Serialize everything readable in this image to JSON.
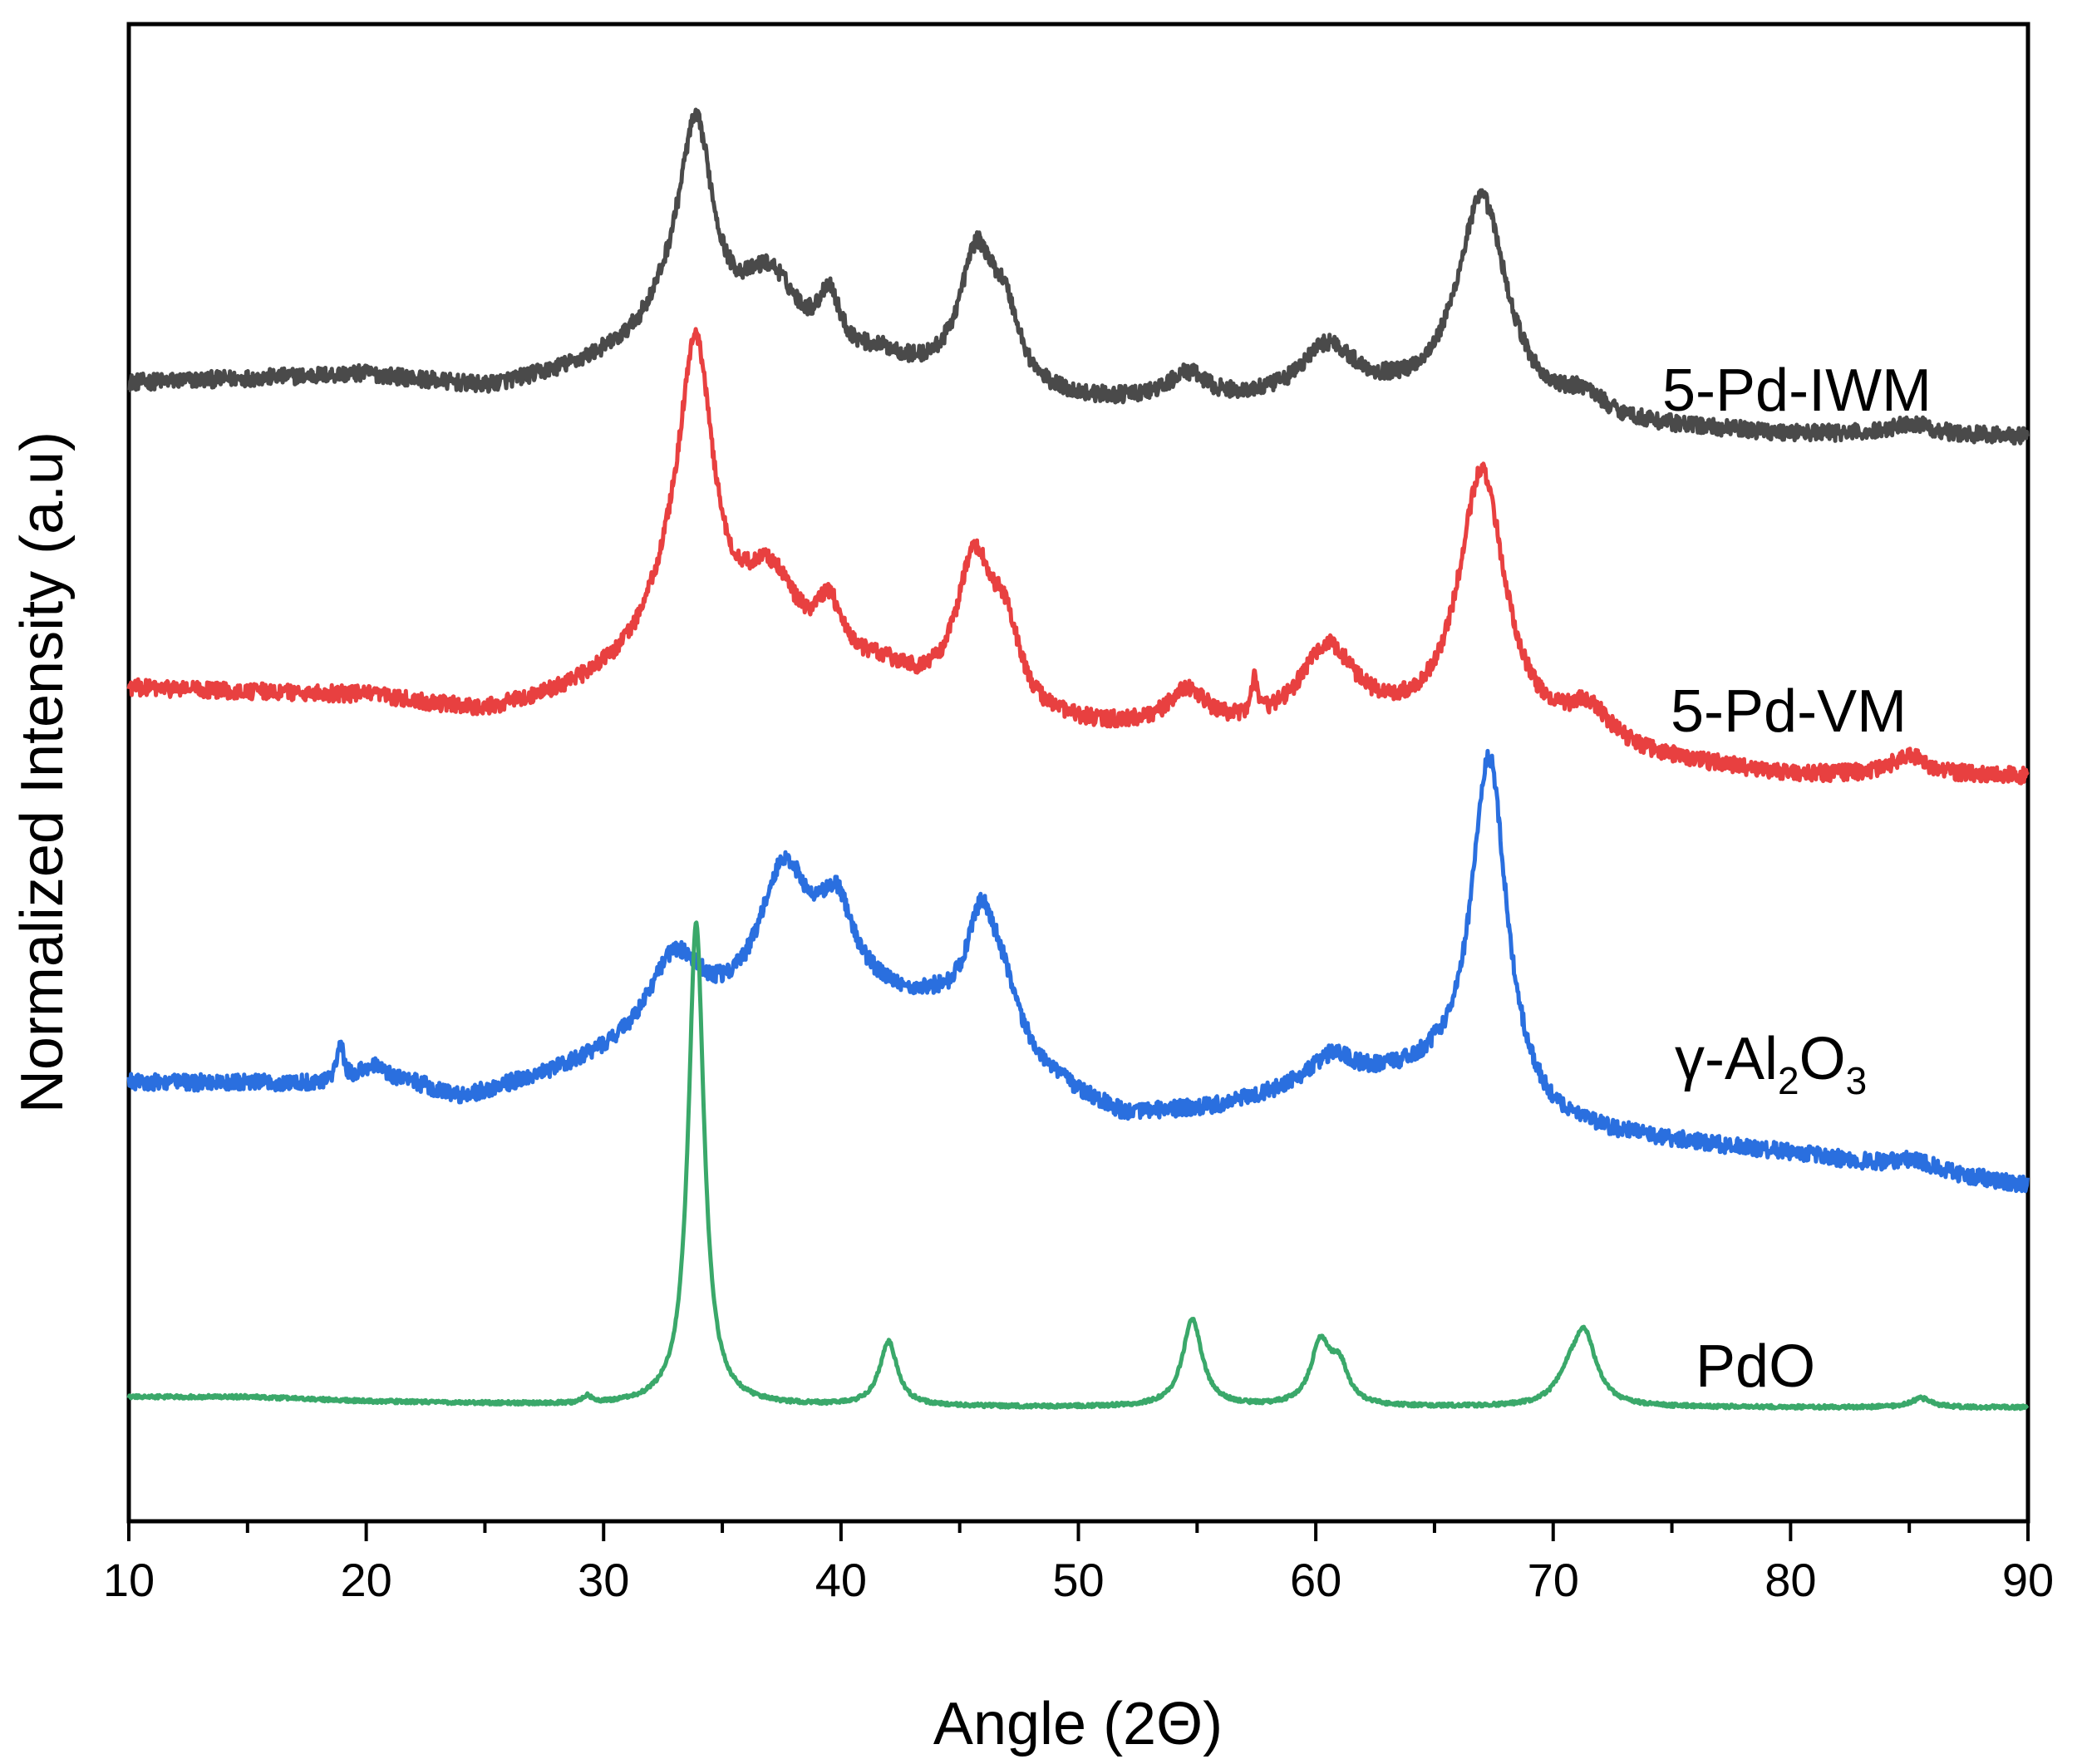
{
  "chart_data": {
    "type": "line",
    "title": "",
    "xlabel": "Angle (2Θ)",
    "ylabel": "Normalized Intensity (a.u)",
    "xlim": [
      10,
      90
    ],
    "ylim": [
      0,
      100
    ],
    "x_ticks": [
      "10",
      "20",
      "30",
      "40",
      "50",
      "60",
      "70",
      "80",
      "90"
    ],
    "y_ticks_shown": false,
    "legend": "inline labels at right of each curve",
    "series": [
      {
        "name": "5-Pd-IWM",
        "label_parts": [
          "5-Pd-IWM"
        ],
        "color": "#4a4a4a",
        "baseline": 76,
        "noise": 0.55,
        "bg": [
          [
            10,
            0
          ],
          [
            20,
            0.5
          ],
          [
            25,
            -0.5
          ],
          [
            30,
            0.7
          ],
          [
            40,
            0.7
          ],
          [
            48,
            -1.5
          ],
          [
            55,
            -1.6
          ],
          [
            63,
            -1.5
          ],
          [
            70,
            -2.8
          ],
          [
            80,
            -3.5
          ],
          [
            90,
            -3.6
          ]
        ],
        "peaks": [
          {
            "center": 33.9,
            "height": 13.5,
            "width": 0.9
          },
          {
            "center": 33.0,
            "height": 3,
            "width": 1.8
          },
          {
            "center": 37.0,
            "height": 5.4,
            "width": 1.5
          },
          {
            "center": 39.5,
            "height": 3.6,
            "width": 0.5
          },
          {
            "center": 41.8,
            "height": 0.8,
            "width": 1.2
          },
          {
            "center": 45.7,
            "height": 8.5,
            "width": 0.9
          },
          {
            "center": 46.9,
            "height": 4.5,
            "width": 0.8
          },
          {
            "center": 54.6,
            "height": 1.8,
            "width": 1.0
          },
          {
            "center": 60.5,
            "height": 3.6,
            "width": 1.4
          },
          {
            "center": 67.0,
            "height": 14.4,
            "width": 1.3
          },
          {
            "center": 71.3,
            "height": 1.4,
            "width": 1.0
          },
          {
            "center": 85.1,
            "height": 0.8,
            "width": 1.0
          }
        ]
      },
      {
        "name": "5-Pd-VM",
        "label_parts": [
          "5-Pd-VM"
        ],
        "color": "#e84040",
        "baseline": 55.6,
        "noise": 0.55,
        "bg": [
          [
            10,
            0
          ],
          [
            20,
            -0.6
          ],
          [
            25,
            -1.8
          ],
          [
            30,
            -0.5
          ],
          [
            40,
            0.2
          ],
          [
            48,
            -2.8
          ],
          [
            55,
            -3.2
          ],
          [
            63,
            -3.1
          ],
          [
            70,
            -4.2
          ],
          [
            80,
            -5.9
          ],
          [
            90,
            -5.9
          ]
        ],
        "peaks": [
          {
            "center": 33.9,
            "height": 18.8,
            "width": 0.9
          },
          {
            "center": 33.0,
            "height": 4.5,
            "width": 1.8
          },
          {
            "center": 37.0,
            "height": 6.1,
            "width": 1.5
          },
          {
            "center": 39.5,
            "height": 3.5,
            "width": 0.6
          },
          {
            "center": 41.8,
            "height": 0.9,
            "width": 1.2
          },
          {
            "center": 45.6,
            "height": 9.5,
            "width": 0.9
          },
          {
            "center": 46.9,
            "height": 5,
            "width": 0.8
          },
          {
            "center": 54.6,
            "height": 2.5,
            "width": 1.0
          },
          {
            "center": 57.4,
            "height": 2.3,
            "width": 0.15
          },
          {
            "center": 60.5,
            "height": 5.4,
            "width": 1.4
          },
          {
            "center": 67.0,
            "height": 17.9,
            "width": 1.2
          },
          {
            "center": 71.5,
            "height": 2.4,
            "width": 1.1
          },
          {
            "center": 85.0,
            "height": 1.3,
            "width": 0.9
          }
        ]
      },
      {
        "name": "γ-Al2O3",
        "label_parts": [
          "γ-Al",
          "2",
          "O",
          "3"
        ],
        "color": "#2a6fdf",
        "baseline": 29.3,
        "noise": 0.55,
        "bg": [
          [
            10,
            0
          ],
          [
            22,
            -0.3
          ],
          [
            24,
            -1.2
          ],
          [
            28,
            0.4
          ],
          [
            30,
            1.3
          ],
          [
            40,
            5.5
          ],
          [
            44,
            4.5
          ],
          [
            50,
            -1.1
          ],
          [
            52,
            -2.4
          ],
          [
            56,
            -1.8
          ],
          [
            61,
            0
          ],
          [
            65,
            0
          ],
          [
            70,
            -3.3
          ],
          [
            80,
            -4.8
          ],
          [
            90,
            -6.9
          ]
        ],
        "peaks": [
          {
            "center": 33.0,
            "height": 5.5,
            "width": 1.4
          },
          {
            "center": 37.6,
            "height": 9.2,
            "width": 1.3
          },
          {
            "center": 39.8,
            "height": 5.0,
            "width": 0.9
          },
          {
            "center": 45.9,
            "height": 7.5,
            "width": 0.8
          },
          {
            "center": 46.8,
            "height": 3.2,
            "width": 0.8
          },
          {
            "center": 18.9,
            "height": 2.6,
            "width": 0.15
          },
          {
            "center": 20.3,
            "height": 1.2,
            "width": 0.8
          },
          {
            "center": 60.6,
            "height": 1.6,
            "width": 1.1
          },
          {
            "center": 67.3,
            "height": 23.2,
            "width": 0.9
          },
          {
            "center": 85.2,
            "height": 0.7,
            "width": 1.0
          }
        ]
      },
      {
        "name": "PdO",
        "label_parts": [
          "PdO"
        ],
        "color": "#3aa86a",
        "baseline": 8.3,
        "noise": 0.12,
        "bg": [
          [
            10,
            0
          ],
          [
            15,
            0
          ],
          [
            20,
            -0.3
          ],
          [
            30,
            -0.6
          ],
          [
            50,
            -0.7
          ],
          [
            70,
            -0.7
          ],
          [
            90,
            -0.7
          ]
        ],
        "peaks": [
          {
            "center": 33.9,
            "height": 32.2,
            "width": 0.4
          },
          {
            "center": 29.3,
            "height": 0.5,
            "width": 0.2
          },
          {
            "center": 42.0,
            "height": 4.3,
            "width": 0.45
          },
          {
            "center": 54.8,
            "height": 5.8,
            "width": 0.5
          },
          {
            "center": 60.2,
            "height": 4.1,
            "width": 0.5
          },
          {
            "center": 61.0,
            "height": 2.4,
            "width": 0.45
          },
          {
            "center": 71.3,
            "height": 4.8,
            "width": 0.6
          },
          {
            "center": 70.6,
            "height": 1.3,
            "width": 0.6
          },
          {
            "center": 85.5,
            "height": 0.6,
            "width": 0.5
          }
        ]
      }
    ]
  }
}
